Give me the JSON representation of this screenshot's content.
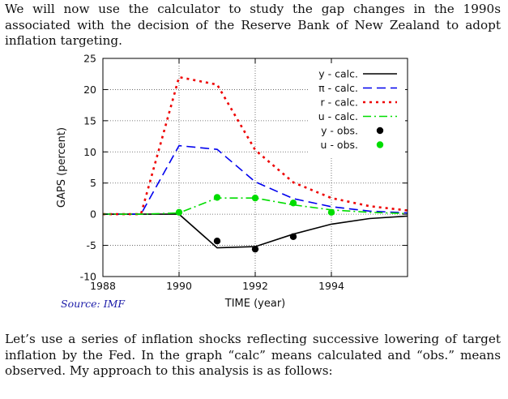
{
  "intro_text": "We will now use the calculator to study the gap changes in the 1990s associated with the decision of the Reserve Bank of New Zealand to adopt inflation targeting.",
  "followup_text": "Let’s use a series of inflation shocks reflecting successive lowering of target inflation by the Fed. In the graph “calc” means calculated and “obs.” means observed. My approach to this analysis is as follows:",
  "source_label": "Source: IMF",
  "colors": {
    "y": "#000000",
    "pi": "#0000ee",
    "r": "#ee0000",
    "u": "#00dd00",
    "text": "#111111",
    "source": "#1a1aa8"
  },
  "chart_data": {
    "type": "line",
    "title": "",
    "xlabel": "TIME (year)",
    "ylabel": "GAPS (percent)",
    "xlim": [
      1988,
      1996
    ],
    "ylim": [
      -10,
      25
    ],
    "x_ticks": [
      1988,
      1990,
      1992,
      1994
    ],
    "y_ticks": [
      -10,
      -5,
      0,
      5,
      10,
      15,
      20,
      25
    ],
    "grid": true,
    "legend_position": "top-right",
    "series": [
      {
        "name": "y - calc.",
        "style": "solid",
        "color": "#000000",
        "x": [
          1988,
          1989,
          1990,
          1991,
          1992,
          1993,
          1994,
          1995,
          1996
        ],
        "y": [
          0,
          0,
          0,
          -5.4,
          -5.2,
          -3.2,
          -1.6,
          -0.7,
          -0.3
        ]
      },
      {
        "name": "π - calc.",
        "style": "dashed",
        "color": "#0000ee",
        "x": [
          1988,
          1989,
          1990,
          1991,
          1992,
          1993,
          1994,
          1995,
          1996
        ],
        "y": [
          0,
          0,
          11,
          10.4,
          5.2,
          2.5,
          1.2,
          0.5,
          0.2
        ]
      },
      {
        "name": "r - calc.",
        "style": "dotted",
        "color": "#ee0000",
        "x": [
          1988,
          1989,
          1990,
          1991,
          1992,
          1993,
          1994,
          1995,
          1996
        ],
        "y": [
          0,
          0,
          22,
          20.8,
          10.3,
          5.1,
          2.6,
          1.3,
          0.6
        ]
      },
      {
        "name": "u - calc.",
        "style": "dashdot",
        "color": "#00dd00",
        "x": [
          1988,
          1989,
          1990,
          1991,
          1992,
          1993,
          1994,
          1995,
          1996
        ],
        "y": [
          0,
          0,
          0.2,
          2.6,
          2.6,
          1.5,
          0.7,
          0.3,
          0.1
        ]
      },
      {
        "name": "y - obs.",
        "style": "points",
        "color": "#000000",
        "x": [
          1991,
          1992,
          1993
        ],
        "y": [
          -4.3,
          -5.6,
          -3.6
        ]
      },
      {
        "name": "u - obs.",
        "style": "points",
        "color": "#00dd00",
        "x": [
          1990,
          1991,
          1992,
          1993,
          1994
        ],
        "y": [
          0.3,
          2.7,
          2.6,
          1.8,
          0.3
        ]
      }
    ]
  }
}
